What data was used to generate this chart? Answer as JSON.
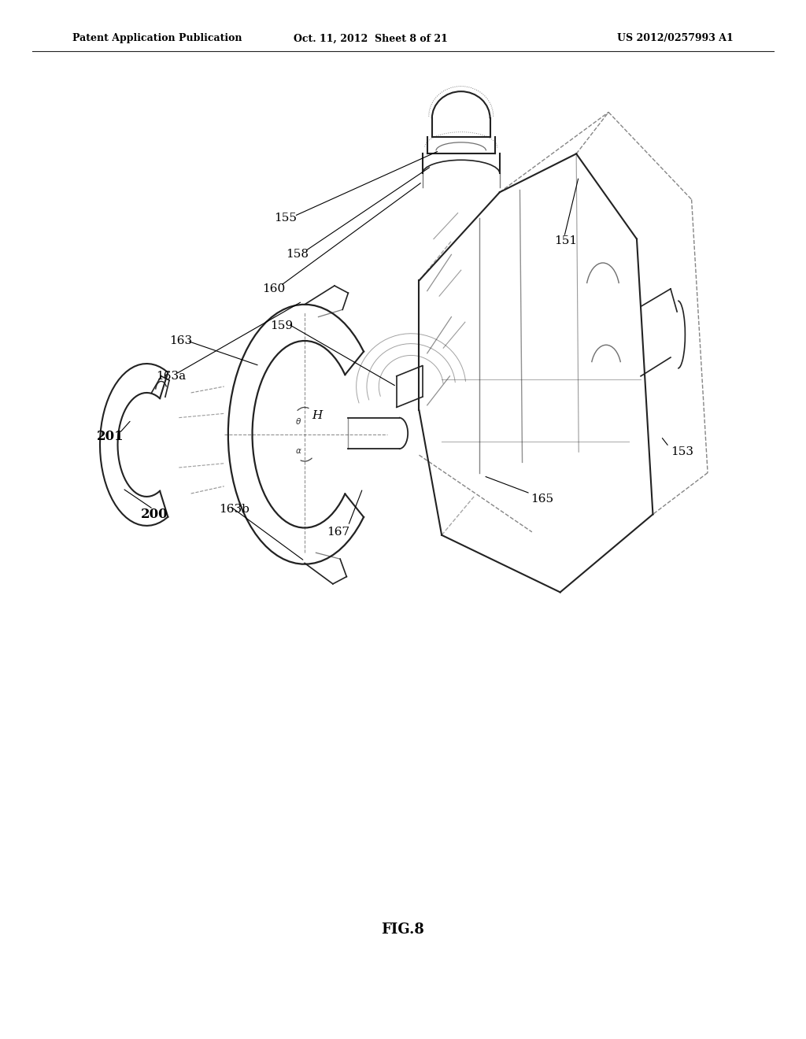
{
  "background_color": "#ffffff",
  "header_left": "Patent Application Publication",
  "header_center": "Oct. 11, 2012  Sheet 8 of 21",
  "header_right": "US 2012/0257993 A1",
  "figure_label": "FIG.8",
  "line_color": "#222222",
  "text_color": "#000000"
}
